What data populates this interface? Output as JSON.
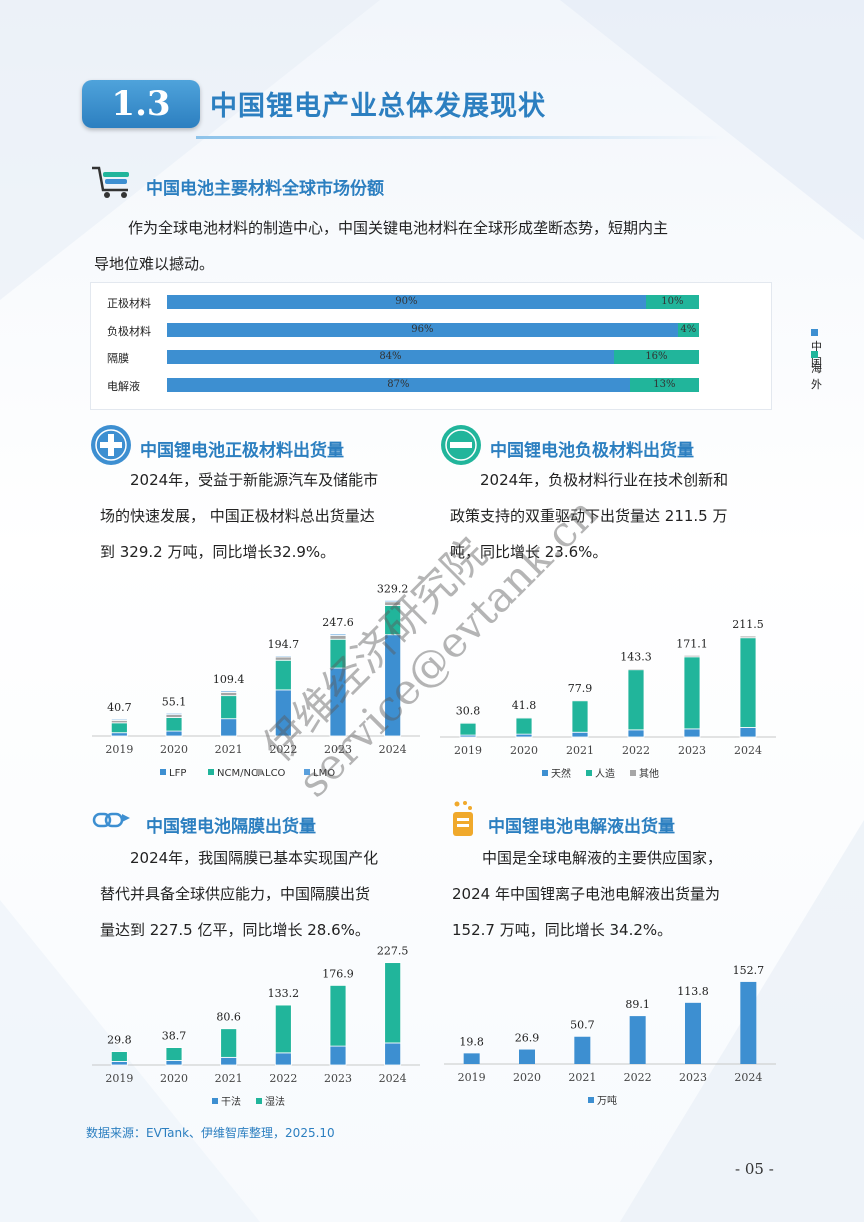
{
  "section": {
    "number": "1.3",
    "title": "中国锂电产业总体发展现状"
  },
  "market_share": {
    "subtitle": "中国电池主要材料全球市场份额",
    "paragraph": [
      "作为全球电池材料的制造中心，中国关键电池材料在全球形成垄断态势，短期内主",
      "导地位难以撼动。"
    ],
    "legend": [
      "中国",
      "海外"
    ],
    "colors": {
      "china": "#3d8fd1",
      "overseas": "#21b59b"
    },
    "rows": [
      {
        "label": "正极材料",
        "china": 90,
        "overseas": 10,
        "china_text": "90%",
        "overseas_text": "10%"
      },
      {
        "label": "负极材料",
        "china": 96,
        "overseas": 4,
        "china_text": "96%",
        "overseas_text": "4%"
      },
      {
        "label": "隔膜",
        "china": 84,
        "overseas": 16,
        "china_text": "84%",
        "overseas_text": "16%"
      },
      {
        "label": "电解液",
        "china": 87,
        "overseas": 13,
        "china_text": "87%",
        "overseas_text": "13%"
      }
    ]
  },
  "cathode": {
    "subtitle": "中国锂电池正极材料出货量",
    "paragraph": [
      "2024年，受益于新能源汽车及储能市",
      "场的快速发展， 中国正极材料总出货量达",
      "到 329.2 万吨，同比增长32.9%。"
    ]
  },
  "anode": {
    "subtitle": "中国锂电池负极材料出货量",
    "paragraph": [
      "2024年，负极材料行业在技术创新和",
      "政策支持的双重驱动下出货量达 211.5 万",
      "吨，同比增长 23.6%。"
    ]
  },
  "separator": {
    "subtitle": "中国锂电池隔膜出货量",
    "paragraph": [
      "2024年，我国隔膜已基本实现国产化",
      "替代并具备全球供应能力，中国隔膜出货",
      "量达到 227.5 亿平，同比增长 28.6%。"
    ]
  },
  "electrolyte": {
    "subtitle": "中国锂电池电解液出货量",
    "paragraph": [
      "中国是全球电解液的主要供应国家，",
      "2024 年中国锂离子电池电解液出货量为",
      "152.7 万吨，同比增长 34.2%。"
    ]
  },
  "chart_data": [
    {
      "id": "cathode",
      "type": "bar",
      "stacked": true,
      "categories": [
        "2019",
        "2020",
        "2021",
        "2022",
        "2023",
        "2024"
      ],
      "totals": [
        40.7,
        55.1,
        109.4,
        194.7,
        247.6,
        329.2
      ],
      "total_labels": [
        "40.7",
        "55.1",
        "109.4",
        "194.7",
        "247.6",
        "329.2"
      ],
      "ymax": 340,
      "series": [
        {
          "name": "LFP",
          "color": "#3d8fd1",
          "values": [
            8,
            12,
            42,
            112,
            165,
            246
          ]
        },
        {
          "name": "NCM/NCA",
          "color": "#21b59b",
          "values": [
            24,
            33,
            56,
            72,
            70,
            71
          ]
        },
        {
          "name": "LCO",
          "color": "#a6a6a6",
          "values": [
            6,
            7,
            8,
            8,
            9,
            9
          ]
        },
        {
          "name": "LMO",
          "color": "#5aa0dd",
          "values": [
            2.7,
            3.1,
            3.4,
            2.7,
            3.6,
            3.2
          ]
        }
      ]
    },
    {
      "id": "anode",
      "type": "bar",
      "stacked": true,
      "categories": [
        "2019",
        "2020",
        "2021",
        "2022",
        "2023",
        "2024"
      ],
      "totals": [
        30.8,
        41.8,
        77.9,
        143.3,
        171.1,
        211.5
      ],
      "total_labels": [
        "30.8",
        "41.8",
        "77.9",
        "143.3",
        "171.1",
        "211.5"
      ],
      "ymax": 220,
      "series": [
        {
          "name": "天然",
          "color": "#3d8fd1",
          "values": [
            4,
            6,
            10,
            15,
            17,
            20
          ]
        },
        {
          "name": "人造",
          "color": "#21b59b",
          "values": [
            25,
            34,
            66,
            126,
            151,
            188
          ]
        },
        {
          "name": "其他",
          "color": "#a6a6a6",
          "values": [
            1.8,
            1.8,
            1.9,
            2.3,
            3.1,
            3.5
          ]
        }
      ]
    },
    {
      "id": "separator",
      "type": "bar",
      "stacked": true,
      "categories": [
        "2019",
        "2020",
        "2021",
        "2022",
        "2023",
        "2024"
      ],
      "totals": [
        29.8,
        38.7,
        80.6,
        133.2,
        176.9,
        227.5
      ],
      "total_labels": [
        "29.8",
        "38.7",
        "80.6",
        "133.2",
        "176.9",
        "227.5"
      ],
      "ymax": 240,
      "series": [
        {
          "name": "干法",
          "color": "#3d8fd1",
          "values": [
            8,
            10,
            17,
            27,
            42,
            49
          ]
        },
        {
          "name": "湿法",
          "color": "#21b59b",
          "values": [
            21.8,
            28.7,
            63.6,
            106.2,
            134.9,
            178.5
          ]
        }
      ]
    },
    {
      "id": "electrolyte",
      "type": "bar",
      "stacked": false,
      "categories": [
        "2019",
        "2020",
        "2021",
        "2022",
        "2023",
        "2024"
      ],
      "totals": [
        19.8,
        26.9,
        50.7,
        89.1,
        113.8,
        152.7
      ],
      "total_labels": [
        "19.8",
        "26.9",
        "50.7",
        "89.1",
        "113.8",
        "152.7"
      ],
      "ymax": 160,
      "series": [
        {
          "name": "万吨",
          "color": "#3d8fd1",
          "values": [
            19.8,
            26.9,
            50.7,
            89.1,
            113.8,
            152.7
          ]
        }
      ]
    }
  ],
  "source": "数据来源：EVTank、伊维智库整理，2025.10",
  "page_number": "- 05 -",
  "watermark": {
    "line1": "伊维经济研究院",
    "line2": "service@evtank.cn"
  }
}
